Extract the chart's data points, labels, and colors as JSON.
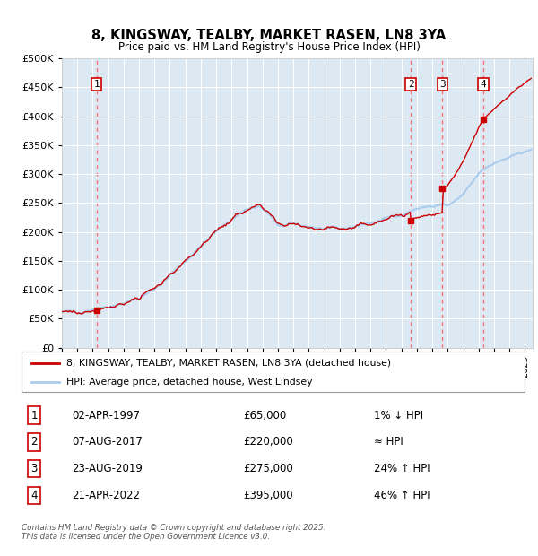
{
  "title": "8, KINGSWAY, TEALBY, MARKET RASEN, LN8 3YA",
  "subtitle": "Price paid vs. HM Land Registry's House Price Index (HPI)",
  "xlim_start": 1995.0,
  "xlim_end": 2025.5,
  "ylim_min": 0,
  "ylim_max": 500000,
  "yticks": [
    0,
    50000,
    100000,
    150000,
    200000,
    250000,
    300000,
    350000,
    400000,
    450000,
    500000
  ],
  "ytick_labels": [
    "£0",
    "£50K",
    "£100K",
    "£150K",
    "£200K",
    "£250K",
    "£300K",
    "£350K",
    "£400K",
    "£450K",
    "£500K"
  ],
  "bg_color": "#dce8f2",
  "grid_color": "#ffffff",
  "red_line_color": "#cc0000",
  "blue_line_color": "#aaccee",
  "dashed_line_color": "#ff6666",
  "marker_color": "#cc0000",
  "transactions": [
    {
      "num": 1,
      "date_str": "02-APR-1997",
      "date_x": 1997.26,
      "price": 65000,
      "pct": "1% ↓ HPI"
    },
    {
      "num": 2,
      "date_str": "07-AUG-2017",
      "date_x": 2017.6,
      "price": 220000,
      "pct": "≈ HPI"
    },
    {
      "num": 3,
      "date_str": "23-AUG-2019",
      "date_x": 2019.65,
      "price": 275000,
      "pct": "24% ↑ HPI"
    },
    {
      "num": 4,
      "date_str": "21-APR-2022",
      "date_x": 2022.31,
      "price": 395000,
      "pct": "46% ↑ HPI"
    }
  ],
  "legend_label_red": "8, KINGSWAY, TEALBY, MARKET RASEN, LN8 3YA (detached house)",
  "legend_label_blue": "HPI: Average price, detached house, West Lindsey",
  "footnote": "Contains HM Land Registry data © Crown copyright and database right 2025.\nThis data is licensed under the Open Government Licence v3.0."
}
